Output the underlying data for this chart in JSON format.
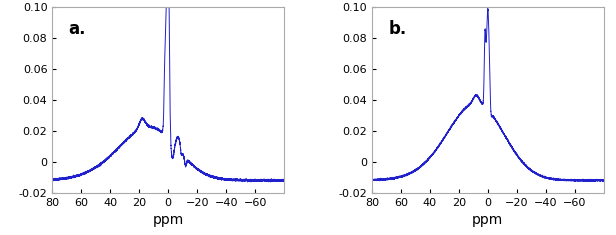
{
  "line_color": "#2020cc",
  "line_width": 0.7,
  "xlim": [
    80,
    -80
  ],
  "ylim": [
    -0.02,
    0.1
  ],
  "yticks": [
    -0.02,
    0,
    0.02,
    0.04,
    0.06,
    0.08,
    0.1
  ],
  "xticks": [
    80,
    60,
    40,
    20,
    0,
    -20,
    -40,
    -60
  ],
  "xlabel": "ppm",
  "label_a": "a.",
  "label_b": "b.",
  "background_color": "#ffffff",
  "label_fontsize": 12,
  "tick_fontsize": 8,
  "xlabel_fontsize": 10,
  "baseline": -0.012
}
